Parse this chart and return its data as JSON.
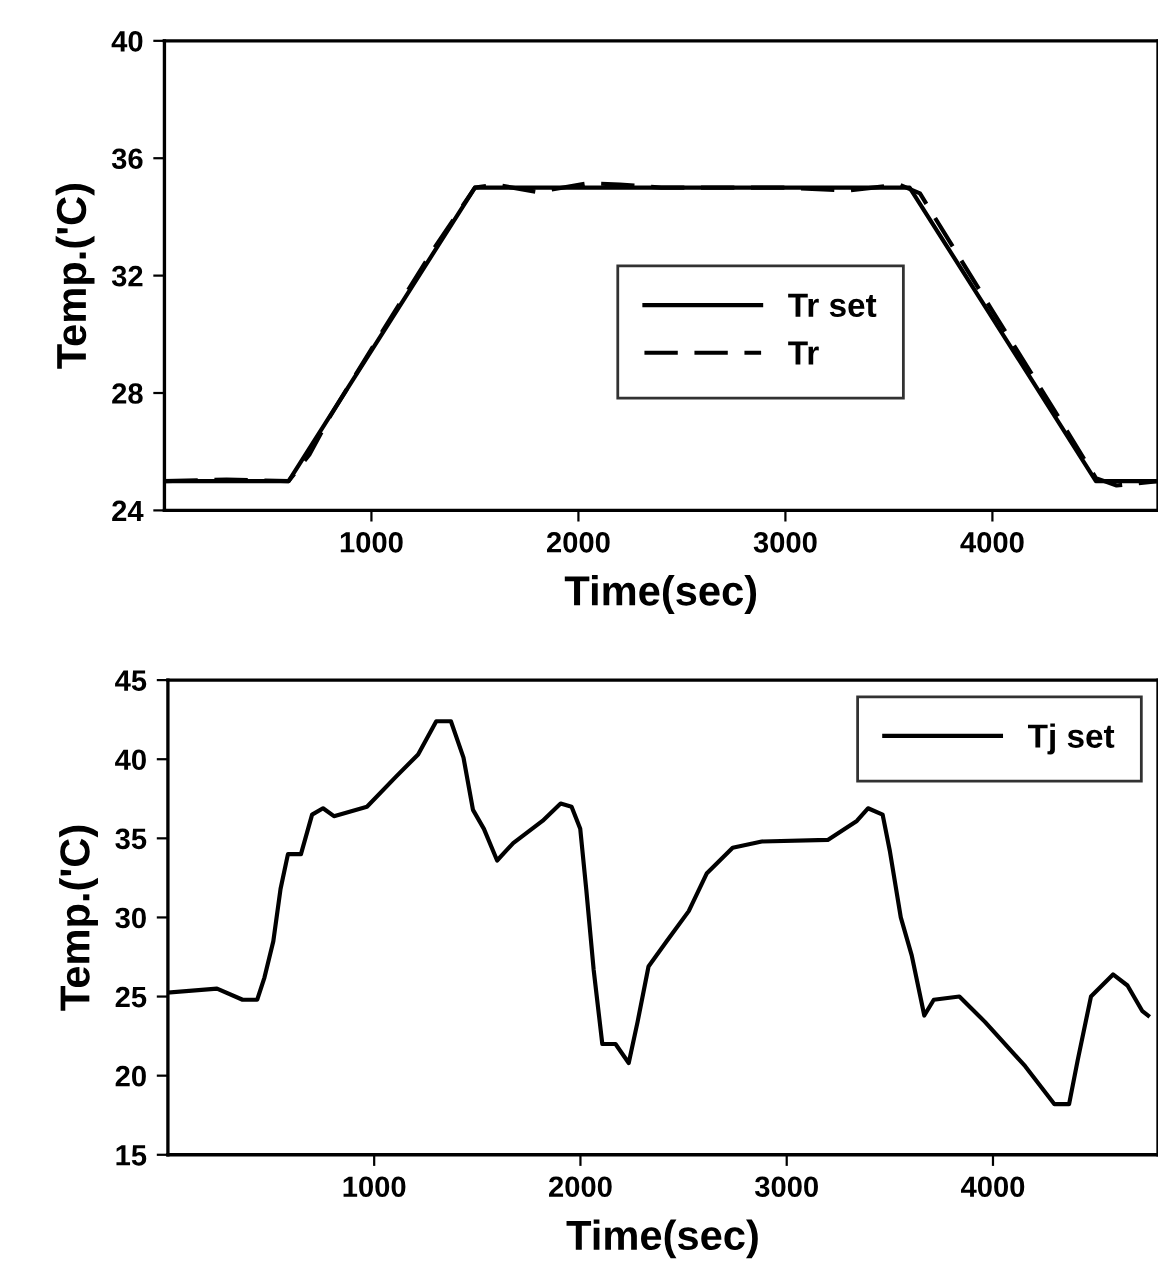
{
  "chart_data": [
    {
      "type": "line",
      "xlabel": "Time(sec)",
      "ylabel": "Temp.('C)",
      "xlim": [
        0,
        4800
      ],
      "ylim": [
        24,
        40
      ],
      "xticks": [
        1000,
        2000,
        3000,
        4000
      ],
      "yticks": [
        24,
        28,
        32,
        36,
        40
      ],
      "grid": false,
      "legend": "center",
      "marker": "none",
      "series": [
        {
          "name": "Tr set",
          "color": "#000000",
          "line_style": "solid",
          "x": [
            0,
            600,
            1500,
            3600,
            4500,
            4800
          ],
          "values": [
            25,
            25,
            35,
            35,
            25,
            25
          ]
        },
        {
          "name": "Tr",
          "color": "#000000",
          "line_style": "dashed",
          "x": [
            0,
            300,
            600,
            700,
            800,
            1000,
            1300,
            1500,
            1600,
            1800,
            2050,
            2200,
            2400,
            3000,
            3300,
            3550,
            3650,
            4000,
            4300,
            4500,
            4600,
            4800
          ],
          "values": [
            25,
            25.05,
            25,
            25.9,
            27.2,
            29.5,
            32.9,
            35.0,
            35.1,
            34.85,
            35.15,
            35.1,
            35.0,
            35.0,
            34.9,
            35.1,
            34.8,
            30.8,
            27.4,
            25.1,
            24.85,
            25.0
          ]
        }
      ]
    },
    {
      "type": "line",
      "xlabel": "Time(sec)",
      "ylabel": "Temp.('C)",
      "xlim": [
        0,
        4800
      ],
      "ylim": [
        15,
        45
      ],
      "xticks": [
        1000,
        2000,
        3000,
        4000
      ],
      "yticks": [
        15,
        20,
        25,
        30,
        35,
        40,
        45
      ],
      "grid": false,
      "legend": "top right",
      "marker": "none",
      "series": [
        {
          "name": "Tj set",
          "color": "#000000",
          "line_style": "solid",
          "x": [
            0,
            238,
            362,
            433,
            468,
            511,
            546,
            582,
            645,
            699,
            752,
            805,
            965,
            1106,
            1213,
            1301,
            1372,
            1433,
            1479,
            1532,
            1596,
            1674,
            1816,
            1904,
            1957,
            1999,
            2028,
            2064,
            2106,
            2170,
            2234,
            2277,
            2330,
            2418,
            2525,
            2613,
            2738,
            2879,
            3199,
            3340,
            3394,
            3465,
            3500,
            3553,
            3606,
            3667,
            3713,
            3837,
            3961,
            4156,
            4298,
            4369,
            4411,
            4475,
            4582,
            4652,
            4723,
            4752
          ],
          "values": [
            25.25,
            25.5,
            24.8,
            24.8,
            26.2,
            28.5,
            31.8,
            34.0,
            34.0,
            36.5,
            36.9,
            36.4,
            37.0,
            38.9,
            40.3,
            42.4,
            42.4,
            40.1,
            36.8,
            35.6,
            33.6,
            34.7,
            36.1,
            37.2,
            37.0,
            35.6,
            31.8,
            26.7,
            22.0,
            22.0,
            20.8,
            23.4,
            26.9,
            28.5,
            30.4,
            32.8,
            34.4,
            34.8,
            34.9,
            36.1,
            36.9,
            36.5,
            34.2,
            30.0,
            27.6,
            23.8,
            24.8,
            25.0,
            23.4,
            20.6,
            18.2,
            18.2,
            21.0,
            25.0,
            26.4,
            25.7,
            24.1,
            23.8
          ]
        }
      ]
    }
  ]
}
